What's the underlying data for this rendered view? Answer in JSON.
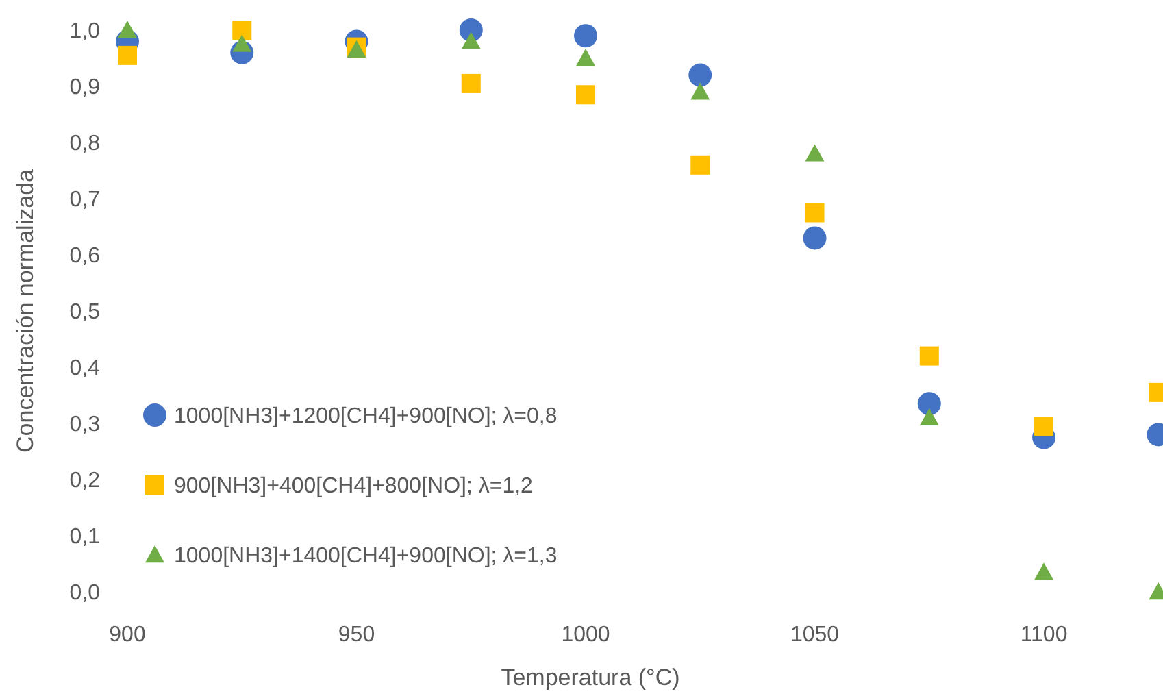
{
  "chart_data": {
    "type": "scatter",
    "xlabel": "Temperatura (°C)",
    "ylabel": "Concentración normalizada",
    "x": [
      900,
      925,
      950,
      975,
      1000,
      1025,
      1050,
      1075,
      1100,
      1125
    ],
    "xlim": [
      900,
      1126
    ],
    "xticks": [
      900,
      950,
      1000,
      1050,
      1100
    ],
    "ylim": [
      0,
      1
    ],
    "yticks": [
      {
        "value": 0,
        "label": "0,0"
      },
      {
        "value": 0.1,
        "label": "0,1"
      },
      {
        "value": 0.2,
        "label": "0,2"
      },
      {
        "value": 0.3,
        "label": "0,3"
      },
      {
        "value": 0.4,
        "label": "0,4"
      },
      {
        "value": 0.5,
        "label": "0,5"
      },
      {
        "value": 0.6,
        "label": "0,6"
      },
      {
        "value": 0.7,
        "label": "0,7"
      },
      {
        "value": 0.8,
        "label": "0,8"
      },
      {
        "value": 0.9,
        "label": "0,9"
      },
      {
        "value": 1,
        "label": "1,0"
      }
    ],
    "legend": "bottom left",
    "grid": false,
    "series": [
      {
        "name": "1000[NH3]+1200[CH4]+900[NO]; λ=0,8",
        "color": "#4472c4",
        "marker": "circle",
        "values": [
          0.98,
          0.96,
          0.98,
          1.0,
          0.99,
          0.92,
          0.63,
          0.335,
          0.275,
          0.28
        ]
      },
      {
        "name": "900[NH3]+400[CH4]+800[NO]; λ=1,2",
        "color": "#ffc000",
        "marker": "square",
        "values": [
          0.955,
          1.0,
          0.97,
          0.905,
          0.885,
          0.76,
          0.675,
          0.42,
          0.295,
          0.355
        ]
      },
      {
        "name": "1000[NH3]+1400[CH4]+900[NO]; λ=1,3",
        "color": "#70ad47",
        "marker": "triangle",
        "values": [
          1.0,
          0.975,
          0.965,
          0.98,
          0.95,
          0.89,
          0.78,
          0.31,
          0.035,
          0.0
        ]
      }
    ]
  }
}
